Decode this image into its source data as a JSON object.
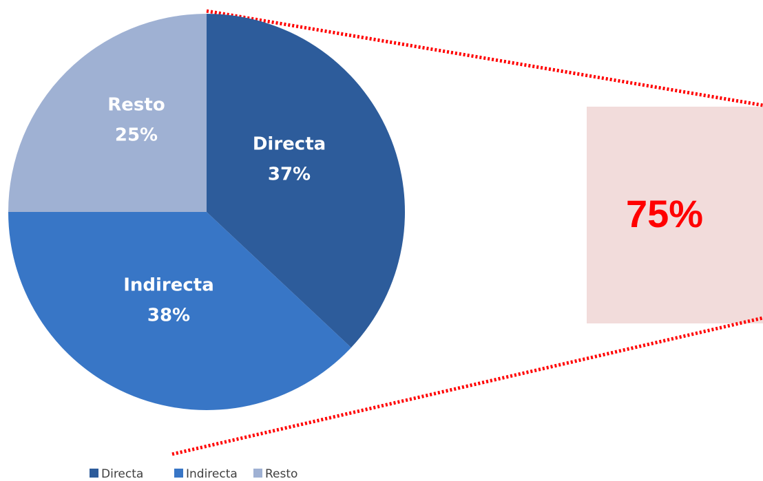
{
  "chart_data": {
    "type": "pie",
    "categories": [
      "Directa",
      "Indirecta",
      "Resto"
    ],
    "values": [
      37,
      38,
      25
    ],
    "value_labels": [
      "37%",
      "38%",
      "25%"
    ],
    "colors": [
      "#2d5c9b",
      "#3876c6",
      "#9fb1d3"
    ],
    "annotation": "75%",
    "legend": "bottom"
  }
}
